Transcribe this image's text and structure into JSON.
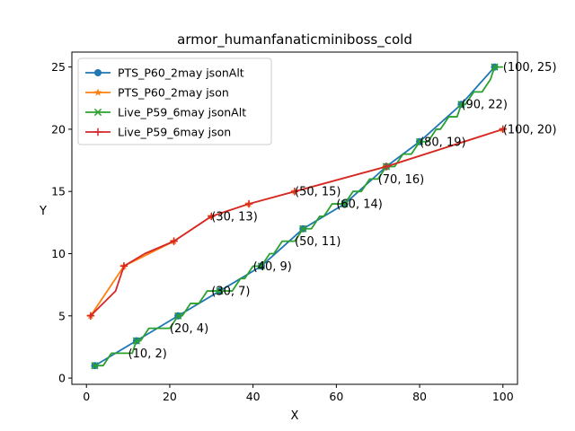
{
  "chart_data": {
    "type": "line",
    "title": "armor_humanfanaticminiboss_cold",
    "xlabel": "X",
    "ylabel": "Y",
    "xlim": [
      -3.5,
      103.5
    ],
    "ylim": [
      -0.5,
      26.2
    ],
    "xticks": [
      0,
      20,
      40,
      60,
      80,
      100
    ],
    "yticks": [
      0,
      5,
      10,
      15,
      20,
      25
    ],
    "legend_position": "upper-left",
    "grid": false,
    "series": [
      {
        "name": "PTS_P60_2may jsonAlt",
        "color": "#1f77b4",
        "marker": "circle",
        "points": [
          [
            2,
            1
          ],
          [
            12,
            3
          ],
          [
            22,
            5
          ],
          [
            32,
            7
          ],
          [
            42,
            9
          ],
          [
            52,
            12
          ],
          [
            62,
            14
          ],
          [
            72,
            17
          ],
          [
            80,
            19
          ],
          [
            90,
            22
          ],
          [
            98,
            25
          ]
        ]
      },
      {
        "name": "PTS_P60_2may json",
        "color": "#ff7f0e",
        "marker": "star",
        "points": [
          [
            1,
            5
          ],
          [
            9,
            9
          ],
          [
            21,
            11
          ],
          [
            30,
            13
          ],
          [
            39,
            14
          ],
          [
            50,
            15
          ],
          [
            72,
            17
          ],
          [
            100,
            20
          ]
        ]
      },
      {
        "name": "Live_P59_6may jsonAlt",
        "color": "#2ca02c",
        "marker": "x",
        "markers_at": [
          [
            2,
            1
          ],
          [
            12,
            3
          ],
          [
            22,
            5
          ],
          [
            32,
            7
          ],
          [
            42,
            9
          ],
          [
            52,
            12
          ],
          [
            62,
            14
          ],
          [
            72,
            17
          ],
          [
            80,
            19
          ],
          [
            90,
            22
          ],
          [
            98,
            25
          ]
        ],
        "points": [
          [
            2,
            1
          ],
          [
            4,
            1
          ],
          [
            5,
            1.5
          ],
          [
            6,
            2
          ],
          [
            11,
            2
          ],
          [
            12,
            3
          ],
          [
            13,
            3
          ],
          [
            14,
            3.5
          ],
          [
            15,
            4
          ],
          [
            20,
            4
          ],
          [
            22,
            5
          ],
          [
            23,
            5
          ],
          [
            24,
            5.5
          ],
          [
            25,
            6
          ],
          [
            27,
            6
          ],
          [
            28,
            6.5
          ],
          [
            29,
            7
          ],
          [
            32,
            7
          ],
          [
            35,
            7
          ],
          [
            36,
            7.5
          ],
          [
            37,
            8
          ],
          [
            38,
            8
          ],
          [
            39,
            8.5
          ],
          [
            40,
            9
          ],
          [
            42,
            9
          ],
          [
            43,
            9.5
          ],
          [
            44,
            10
          ],
          [
            45,
            10
          ],
          [
            46,
            10.5
          ],
          [
            47,
            11
          ],
          [
            48,
            11
          ],
          [
            49,
            11
          ],
          [
            50,
            11
          ],
          [
            51,
            11.5
          ],
          [
            52,
            12
          ],
          [
            54,
            12
          ],
          [
            55,
            12.5
          ],
          [
            56,
            13
          ],
          [
            57,
            13
          ],
          [
            58,
            13.5
          ],
          [
            59,
            14
          ],
          [
            62,
            14
          ],
          [
            63,
            14.5
          ],
          [
            64,
            15
          ],
          [
            66,
            15
          ],
          [
            67,
            15.5
          ],
          [
            68,
            16
          ],
          [
            70,
            16
          ],
          [
            71,
            16.5
          ],
          [
            72,
            17
          ],
          [
            74,
            17
          ],
          [
            75,
            17.5
          ],
          [
            76,
            18
          ],
          [
            78,
            18
          ],
          [
            79,
            18.5
          ],
          [
            80,
            19
          ],
          [
            82,
            19
          ],
          [
            83,
            19.5
          ],
          [
            84,
            20
          ],
          [
            85,
            20
          ],
          [
            86,
            20.5
          ],
          [
            87,
            21
          ],
          [
            89,
            21
          ],
          [
            90,
            22
          ],
          [
            91,
            22
          ],
          [
            92,
            22.5
          ],
          [
            93,
            23
          ],
          [
            95,
            23
          ],
          [
            96,
            23.5
          ],
          [
            97,
            24
          ],
          [
            98,
            25
          ],
          [
            100,
            25
          ]
        ]
      },
      {
        "name": "Live_P59_6may json",
        "color": "#d62728",
        "marker": "plus",
        "markers_at": [
          [
            1,
            5
          ],
          [
            9,
            9
          ],
          [
            21,
            11
          ],
          [
            30,
            13
          ],
          [
            39,
            14
          ],
          [
            50,
            15
          ],
          [
            72,
            17
          ],
          [
            100,
            20
          ]
        ],
        "points": [
          [
            1,
            5
          ],
          [
            7,
            7
          ],
          [
            9,
            9
          ],
          [
            14,
            10
          ],
          [
            21,
            11
          ],
          [
            30,
            13
          ],
          [
            39,
            14
          ],
          [
            50,
            15
          ],
          [
            72,
            17
          ],
          [
            100,
            20
          ]
        ]
      }
    ],
    "annotations": [
      {
        "x": 10,
        "y": 2,
        "text": "(10, 2)"
      },
      {
        "x": 20,
        "y": 4,
        "text": "(20, 4)"
      },
      {
        "x": 30,
        "y": 7,
        "text": "(30, 7)"
      },
      {
        "x": 40,
        "y": 9,
        "text": "(40, 9)"
      },
      {
        "x": 50,
        "y": 11,
        "text": "(50, 11)"
      },
      {
        "x": 60,
        "y": 14,
        "text": "(60, 14)"
      },
      {
        "x": 70,
        "y": 16,
        "text": "(70, 16)"
      },
      {
        "x": 80,
        "y": 19,
        "text": "(80, 19)"
      },
      {
        "x": 90,
        "y": 22,
        "text": "(90, 22)"
      },
      {
        "x": 100,
        "y": 25,
        "text": "(100, 25)"
      },
      {
        "x": 30,
        "y": 13,
        "text": "(30, 13)"
      },
      {
        "x": 50,
        "y": 15,
        "text": "(50, 15)"
      },
      {
        "x": 100,
        "y": 20,
        "text": "(100, 20)"
      }
    ]
  }
}
